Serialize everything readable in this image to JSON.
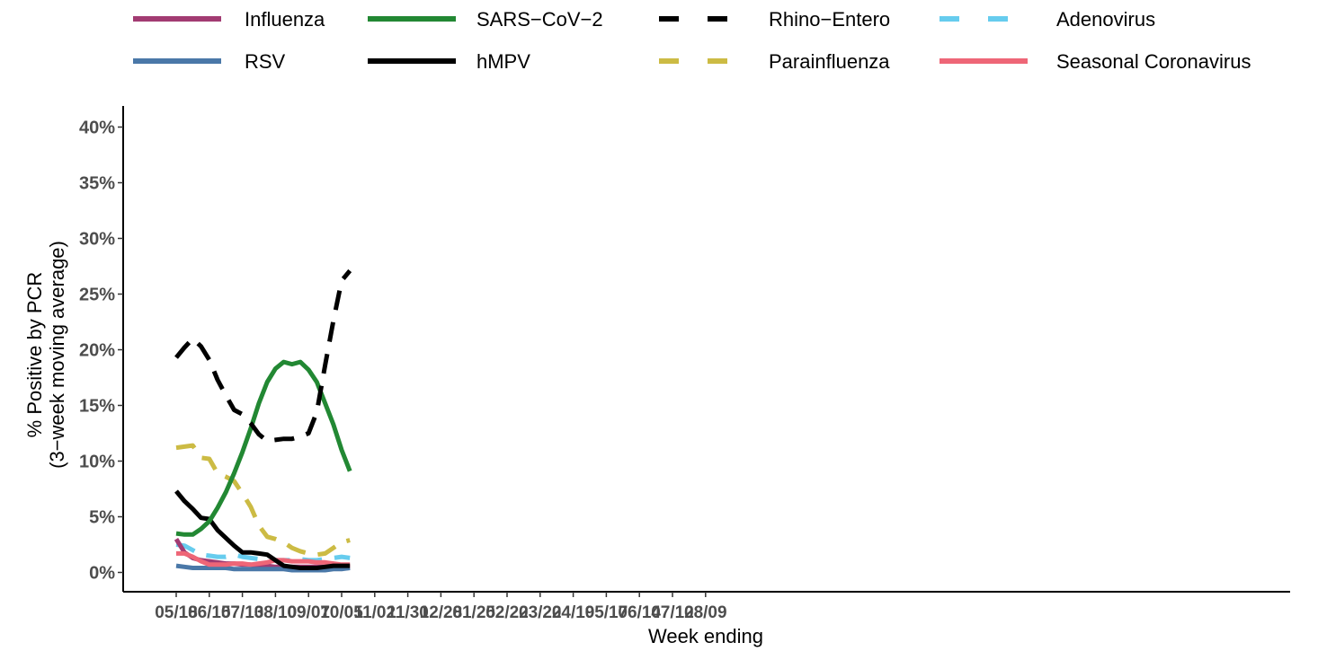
{
  "chart_data": {
    "type": "line",
    "xlabel": "Week ending",
    "ylabel_line1": "% Positive by PCR",
    "ylabel_line2": "(3−week moving average)",
    "y_axis": {
      "min": -1.5,
      "max": 42,
      "ticks": [
        0,
        5,
        10,
        15,
        20,
        25,
        30,
        35,
        40
      ],
      "format": "percent"
    },
    "x_axis": {
      "min": 0,
      "max": 70
    },
    "x_ticks": [
      {
        "x": 0,
        "label": "05/18"
      },
      {
        "x": 4,
        "label": "06/15"
      },
      {
        "x": 8,
        "label": "07/13"
      },
      {
        "x": 12,
        "label": "08/10"
      },
      {
        "x": 16,
        "label": "09/07"
      },
      {
        "x": 20,
        "label": "10/05"
      },
      {
        "x": 24,
        "label": "11/02"
      },
      {
        "x": 28,
        "label": "11/30"
      },
      {
        "x": 32,
        "label": "12/28"
      },
      {
        "x": 36,
        "label": "01/25"
      },
      {
        "x": 40,
        "label": "02/22"
      },
      {
        "x": 44,
        "label": "03/22"
      },
      {
        "x": 48,
        "label": "04/19"
      },
      {
        "x": 52,
        "label": "05/17"
      },
      {
        "x": 56,
        "label": "06/14"
      },
      {
        "x": 60,
        "label": "07/12"
      },
      {
        "x": 64,
        "label": "08/09"
      }
    ],
    "legend_position": "top",
    "grid": false,
    "series": [
      {
        "name": "Influenza",
        "color": "#a23b72",
        "dashed": false,
        "values": [
          3.0,
          1.8,
          1.3,
          1.1,
          1.0,
          0.9,
          0.8,
          0.8,
          0.7,
          0.7,
          0.6,
          0.6,
          0.5,
          0.5,
          0.5,
          0.5,
          0.5,
          0.5,
          0.5,
          0.5,
          0.5,
          0.5
        ]
      },
      {
        "name": "RSV",
        "color": "#4a78a8",
        "dashed": false,
        "values": [
          0.6,
          0.5,
          0.4,
          0.4,
          0.4,
          0.4,
          0.4,
          0.3,
          0.3,
          0.3,
          0.3,
          0.3,
          0.3,
          0.3,
          0.2,
          0.2,
          0.2,
          0.2,
          0.2,
          0.3,
          0.3,
          0.4
        ]
      },
      {
        "name": "SARS−CoV−2",
        "color": "#228833",
        "dashed": false,
        "values": [
          3.5,
          3.4,
          3.4,
          3.9,
          4.6,
          5.8,
          7.2,
          8.9,
          10.8,
          12.9,
          15.2,
          17.1,
          18.3,
          18.9,
          18.7,
          18.9,
          18.2,
          17.1,
          15.2,
          13.3,
          11.0,
          9.1
        ]
      },
      {
        "name": "hMPV",
        "color": "#000000",
        "dashed": false,
        "values": [
          7.3,
          6.4,
          5.7,
          4.9,
          4.8,
          3.8,
          3.1,
          2.4,
          1.8,
          1.8,
          1.7,
          1.6,
          1.1,
          0.6,
          0.5,
          0.4,
          0.4,
          0.4,
          0.5,
          0.6,
          0.6,
          0.6
        ]
      },
      {
        "name": "Rhino−Entero",
        "color": "#000000",
        "dashed": true,
        "values": [
          19.3,
          20.2,
          21.0,
          20.3,
          19.1,
          17.3,
          15.9,
          14.6,
          14.2,
          13.4,
          12.4,
          11.8,
          11.9,
          12.0,
          12.0,
          12.2,
          12.5,
          14.4,
          18.6,
          22.6,
          26.2,
          27.1
        ]
      },
      {
        "name": "Parainfluenza",
        "color": "#ccbb44",
        "dashed": true,
        "values": [
          11.2,
          11.3,
          11.4,
          10.3,
          10.2,
          8.9,
          8.6,
          8.2,
          7.1,
          5.9,
          4.2,
          3.2,
          3.0,
          2.7,
          2.2,
          1.9,
          1.7,
          1.6,
          1.7,
          2.2,
          2.7,
          2.9
        ]
      },
      {
        "name": "Adenovirus",
        "color": "#66ccee",
        "dashed": true,
        "values": [
          2.5,
          2.4,
          2.0,
          1.6,
          1.5,
          1.4,
          1.4,
          1.6,
          1.4,
          1.3,
          1.2,
          1.2,
          1.1,
          1.1,
          1.1,
          1.2,
          1.1,
          1.1,
          1.2,
          1.3,
          1.4,
          1.3
        ]
      },
      {
        "name": "Seasonal Coronavirus",
        "color": "#ee6677",
        "dashed": false,
        "values": [
          1.7,
          1.7,
          1.4,
          1.0,
          0.7,
          0.7,
          0.7,
          0.8,
          0.8,
          0.7,
          0.8,
          0.9,
          1.1,
          1.1,
          1.0,
          1.0,
          1.0,
          0.9,
          0.9,
          0.8,
          0.7,
          0.7
        ]
      }
    ]
  }
}
